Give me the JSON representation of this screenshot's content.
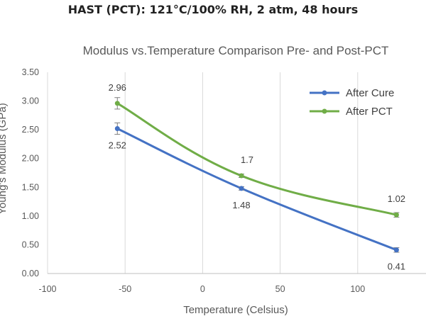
{
  "page": {
    "heading": "HAST (PCT): 121°C/100% RH, 2 atm, 48 hours"
  },
  "chart_data": {
    "type": "line",
    "title": "Modulus vs.Temperature Comparison Pre- and Post-PCT",
    "xlabel": "Temperature (Celsius)",
    "ylabel": "Young's Modulus (GPa)",
    "xlim": [
      -100,
      150
    ],
    "ylim": [
      0,
      3.5
    ],
    "x_ticks": [
      "-100",
      "-50",
      "0",
      "50",
      "100"
    ],
    "y_ticks": [
      "0.00",
      "0.50",
      "1.00",
      "1.50",
      "2.00",
      "2.50",
      "3.00",
      "3.50"
    ],
    "grid": "vertical",
    "legend_position": "top-right",
    "series": [
      {
        "name": "After Cure",
        "color": "#4472C4",
        "x": [
          -55,
          25,
          125
        ],
        "y": [
          2.52,
          1.48,
          0.41
        ],
        "error": [
          0.1,
          0.03,
          0.04
        ],
        "labels": [
          "2.52",
          "1.48",
          "0.41"
        ]
      },
      {
        "name": "After PCT",
        "color": "#70AD47",
        "x": [
          -55,
          25,
          125
        ],
        "y": [
          2.96,
          1.7,
          1.02
        ],
        "error": [
          0.1,
          0.03,
          0.04
        ],
        "labels": [
          "2.96",
          "1.7",
          "1.02"
        ]
      }
    ]
  }
}
